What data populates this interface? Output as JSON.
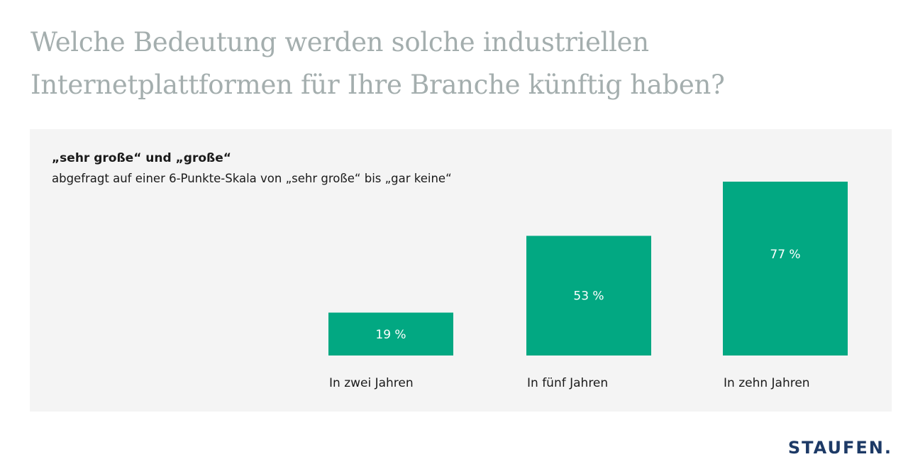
{
  "headline": "Welche Bedeutung werden solche industriellen Internetplattformen für Ihre Branche künftig haben?",
  "brand": {
    "logo_text": "STAUFEN.",
    "color": "#1d3a66"
  },
  "colors": {
    "bar": "#02a882",
    "panel": "#f4f4f4",
    "headline": "#a4aeae"
  },
  "chart_data": {
    "type": "bar",
    "subtitle": "„sehr große“  und „große“",
    "note": "abgefragt auf einer 6-Punkte-Skala von „sehr große“ bis „gar keine“",
    "categories": [
      "In zwei Jahren",
      "In fünf Jahren",
      "In zehn Jahren"
    ],
    "values": [
      19,
      53,
      77
    ],
    "value_labels": [
      "19 %",
      "53 %",
      "77 %"
    ],
    "unit": "%",
    "ylim": [
      0,
      100
    ],
    "grid": false,
    "legend": "none"
  }
}
